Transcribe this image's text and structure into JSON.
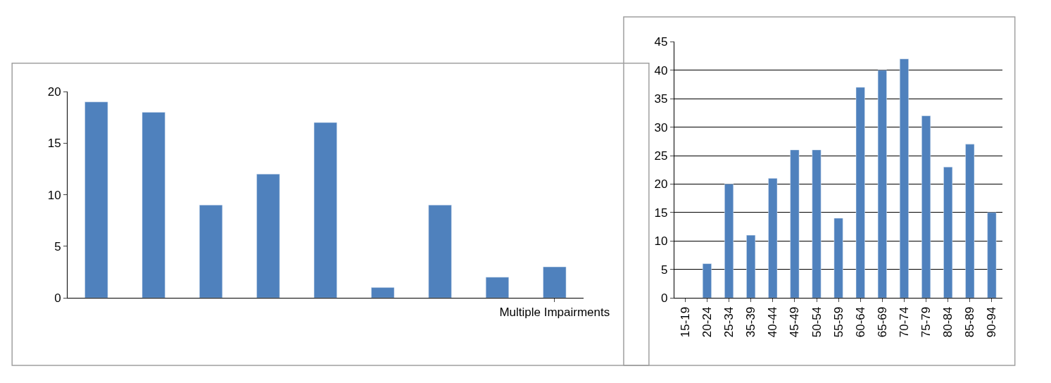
{
  "chart_data": [
    {
      "type": "bar",
      "categories": [
        null,
        null,
        null,
        null,
        null,
        null,
        null,
        null,
        "Multiple Impairments"
      ],
      "values": [
        19,
        18,
        9,
        12,
        17,
        1,
        9,
        2,
        3
      ],
      "color": "#4f81bd",
      "ylim": [
        0,
        20
      ],
      "yticks": [
        0,
        5,
        10,
        15,
        20
      ],
      "grid": false
    },
    {
      "type": "bar",
      "categories": [
        "15-19",
        "20-24",
        "25-34",
        "35-39",
        "40-44",
        "45-49",
        "50-54",
        "55-59",
        "60-64",
        "65-69",
        "70-74",
        "75-79",
        "80-84",
        "85-89",
        "90-94"
      ],
      "values": [
        null,
        6,
        20,
        11,
        21,
        26,
        26,
        14,
        37,
        40,
        42,
        32,
        23,
        27,
        15
      ],
      "color": "#4f81bd",
      "ylim": [
        0,
        45
      ],
      "yticks": [
        0,
        5,
        10,
        15,
        20,
        25,
        30,
        35,
        40,
        45
      ],
      "grid": "y"
    }
  ]
}
